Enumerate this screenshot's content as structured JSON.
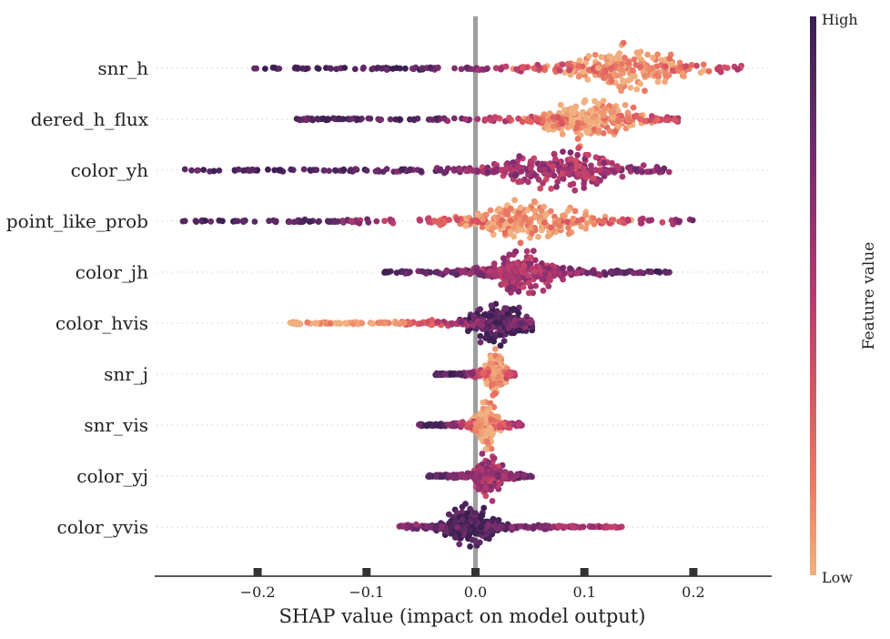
{
  "chart_data": {
    "type": "scatter",
    "subtype": "shap-beeswarm",
    "title": "",
    "xlabel": "SHAP value (impact on model output)",
    "xlim": [
      -0.295,
      0.27
    ],
    "xticks": [
      -0.2,
      -0.1,
      0.0,
      0.1,
      0.2
    ],
    "xtick_labels": [
      "−0.2",
      "−0.1",
      "0.0",
      "0.1",
      "0.2"
    ],
    "zero_line": true,
    "colorbar": {
      "title": "Feature value",
      "high_label": "High",
      "low_label": "Low",
      "colormap": [
        "#f1b07f",
        "#ea7862",
        "#d95263",
        "#b63a6e",
        "#8a2e70",
        "#5f2a67",
        "#3b1f52"
      ]
    },
    "features": [
      {
        "name": "snr_h",
        "min": -0.205,
        "max": 0.245,
        "dense_center": 0.14,
        "dense_center_value": "low",
        "tail_value": "high"
      },
      {
        "name": "dered_h_flux",
        "min": -0.168,
        "max": 0.19,
        "dense_center": 0.105,
        "dense_center_value": "low",
        "tail_value": "high"
      },
      {
        "name": "color_yh",
        "min": -0.268,
        "max": 0.178,
        "dense_center": 0.08,
        "dense_center_value": "mid",
        "tail_value": "high"
      },
      {
        "name": "point_like_prob",
        "min": -0.27,
        "max": 0.2,
        "dense_center": 0.048,
        "dense_center_value": "low",
        "tail_value": "high"
      },
      {
        "name": "color_jh",
        "min": -0.087,
        "max": 0.178,
        "dense_center": 0.045,
        "dense_center_value": "mid",
        "tail_value": "high"
      },
      {
        "name": "color_hvis",
        "min": -0.172,
        "max": 0.052,
        "dense_center": 0.022,
        "dense_center_value": "high",
        "tail_value": "low"
      },
      {
        "name": "snr_j",
        "min": -0.037,
        "max": 0.037,
        "dense_center": 0.018,
        "dense_center_value": "low",
        "tail_value": "high"
      },
      {
        "name": "snr_vis",
        "min": -0.052,
        "max": 0.043,
        "dense_center": 0.01,
        "dense_center_value": "low",
        "tail_value": "high"
      },
      {
        "name": "color_yj",
        "min": -0.045,
        "max": 0.052,
        "dense_center": 0.012,
        "dense_center_value": "mid",
        "tail_value": "high"
      },
      {
        "name": "color_yvis",
        "min": -0.07,
        "max": 0.137,
        "dense_center": -0.005,
        "dense_center_value": "high",
        "tail_value": "mid"
      }
    ]
  }
}
